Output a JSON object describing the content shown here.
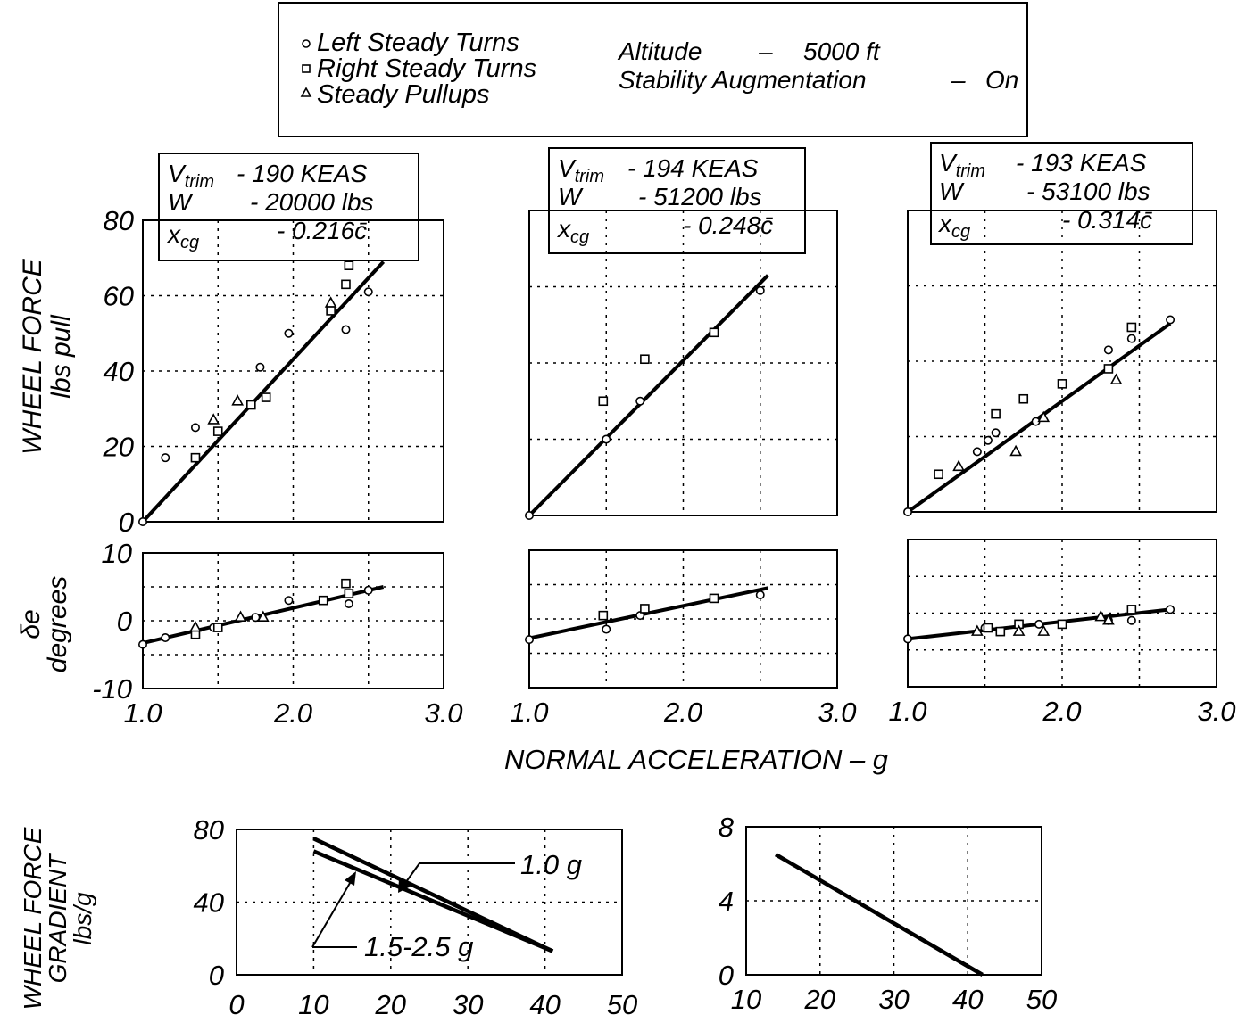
{
  "legend": {
    "items": [
      {
        "marker": "circle",
        "label": "Left Steady Turns"
      },
      {
        "marker": "square",
        "label": "Right Steady Turns"
      },
      {
        "marker": "triangle",
        "label": "Steady Pullups"
      }
    ],
    "conditions": [
      {
        "name": "Altitude",
        "sep": "–",
        "value": "5000 ft"
      },
      {
        "name": "Stability Augmentation",
        "sep": "–",
        "value": "On"
      }
    ]
  },
  "axis_titles": {
    "wheel_force_line1": "WHEEL FORCE",
    "wheel_force_line2": "lbs pull",
    "de_line1": "δe",
    "de_line2": "degrees",
    "x_common": "NORMAL ACCELERATION  – g",
    "gradient_line1": "WHEEL FORCE",
    "gradient_line2": "GRADIENT",
    "gradient_line3": "lbs/g"
  },
  "panels": [
    {
      "vtrim": "190 KEAS",
      "w": "20000 lbs",
      "xcg": "0.216c̄"
    },
    {
      "vtrim": "194 KEAS",
      "w": "51200 lbs",
      "xcg": "0.248c̄"
    },
    {
      "vtrim": "193 KEAS",
      "w": "53100 lbs",
      "xcg": "0.314c̄"
    }
  ],
  "chart_data": [
    {
      "type": "scatter",
      "xlabel": "NORMAL ACCELERATION – g",
      "ylabel": "WHEEL FORCE lbs pull",
      "xlim": [
        1.0,
        3.0
      ],
      "ylim": [
        0,
        80
      ],
      "grid": true,
      "x_ticks": [
        "1.0",
        "2.0",
        "3.0"
      ],
      "y_ticks": [
        "0",
        "20",
        "40",
        "60",
        "80"
      ],
      "series": [
        {
          "name": "Left Steady Turns",
          "marker": "circle",
          "points": [
            [
              1.0,
              0
            ],
            [
              1.15,
              17
            ],
            [
              1.35,
              25
            ],
            [
              1.78,
              41
            ],
            [
              1.97,
              50
            ],
            [
              2.35,
              51
            ],
            [
              2.5,
              61
            ]
          ]
        },
        {
          "name": "Right Steady Turns",
          "marker": "square",
          "points": [
            [
              1.35,
              17
            ],
            [
              1.5,
              24
            ],
            [
              1.72,
              31
            ],
            [
              1.82,
              33
            ],
            [
              2.25,
              56
            ],
            [
              2.35,
              63
            ],
            [
              2.37,
              68
            ]
          ]
        },
        {
          "name": "Steady Pullups",
          "marker": "triangle",
          "points": [
            [
              1.47,
              27
            ],
            [
              1.63,
              32
            ],
            [
              2.25,
              58
            ]
          ]
        }
      ],
      "fit": [
        [
          1.0,
          0
        ],
        [
          2.6,
          69
        ]
      ]
    },
    {
      "type": "scatter",
      "xlabel": "NORMAL ACCELERATION – g",
      "ylabel": "WHEEL FORCE lbs pull",
      "xlim": [
        1.0,
        3.0
      ],
      "ylim": [
        0,
        80
      ],
      "grid": true,
      "series": [
        {
          "name": "Left Steady Turns",
          "marker": "circle",
          "points": [
            [
              1.0,
              0
            ],
            [
              1.5,
              20
            ],
            [
              1.72,
              30
            ],
            [
              2.5,
              59
            ]
          ]
        },
        {
          "name": "Right Steady Turns",
          "marker": "square",
          "points": [
            [
              1.48,
              30
            ],
            [
              1.75,
              41
            ],
            [
              2.2,
              48
            ]
          ]
        }
      ],
      "fit": [
        [
          1.0,
          0
        ],
        [
          2.55,
          63
        ]
      ]
    },
    {
      "type": "scatter",
      "xlabel": "NORMAL ACCELERATION – g",
      "ylabel": "WHEEL FORCE lbs pull",
      "xlim": [
        1.0,
        3.0
      ],
      "ylim": [
        0,
        80
      ],
      "grid": true,
      "series": [
        {
          "name": "Left Steady Turns",
          "marker": "circle",
          "points": [
            [
              1.0,
              0
            ],
            [
              1.45,
              16
            ],
            [
              1.52,
              19
            ],
            [
              1.57,
              21
            ],
            [
              1.83,
              24
            ],
            [
              2.3,
              43
            ],
            [
              2.45,
              46
            ],
            [
              2.7,
              51
            ]
          ]
        },
        {
          "name": "Right Steady Turns",
          "marker": "square",
          "points": [
            [
              1.2,
              10
            ],
            [
              1.57,
              26
            ],
            [
              1.75,
              30
            ],
            [
              2.0,
              34
            ],
            [
              2.3,
              38
            ],
            [
              2.45,
              49
            ]
          ]
        },
        {
          "name": "Steady Pullups",
          "marker": "triangle",
          "points": [
            [
              1.33,
              12
            ],
            [
              1.7,
              16
            ],
            [
              1.88,
              25
            ],
            [
              2.35,
              35
            ]
          ]
        }
      ],
      "fit": [
        [
          1.0,
          0
        ],
        [
          2.7,
          50
        ]
      ]
    },
    {
      "type": "scatter",
      "xlabel": "NORMAL ACCELERATION – g",
      "ylabel": "δe degrees",
      "xlim": [
        1.0,
        3.0
      ],
      "ylim": [
        -10,
        10
      ],
      "grid": true,
      "x_ticks": [
        "1.0",
        "2.0",
        "3.0"
      ],
      "y_ticks": [
        "-10",
        "0",
        "10"
      ],
      "series": [
        {
          "name": "Left Steady Turns",
          "marker": "circle",
          "points": [
            [
              1.0,
              -3.5
            ],
            [
              1.15,
              -2.5
            ],
            [
              1.47,
              -1
            ],
            [
              1.75,
              0.5
            ],
            [
              1.97,
              3
            ],
            [
              2.37,
              2.5
            ],
            [
              2.5,
              4.5
            ]
          ]
        },
        {
          "name": "Right Steady Turns",
          "marker": "square",
          "points": [
            [
              1.35,
              -2
            ],
            [
              1.5,
              -1
            ],
            [
              2.2,
              3
            ],
            [
              2.35,
              5.5
            ],
            [
              2.37,
              4
            ]
          ]
        },
        {
          "name": "Steady Pullups",
          "marker": "triangle",
          "points": [
            [
              1.35,
              -1
            ],
            [
              1.65,
              0.5
            ],
            [
              1.8,
              0.5
            ]
          ]
        }
      ],
      "fit": [
        [
          1.0,
          -3.3
        ],
        [
          2.6,
          5
        ]
      ]
    },
    {
      "type": "scatter",
      "xlabel": "NORMAL ACCELERATION – g",
      "ylabel": "δe degrees",
      "xlim": [
        1.0,
        3.0
      ],
      "ylim": [
        -10,
        10
      ],
      "grid": true,
      "x_ticks": [
        "1.0",
        "2.0",
        "3.0"
      ],
      "series": [
        {
          "name": "Left Steady Turns",
          "marker": "circle",
          "points": [
            [
              1.0,
              -3
            ],
            [
              1.5,
              -1.5
            ],
            [
              1.72,
              0.5
            ],
            [
              2.5,
              3.5
            ]
          ]
        },
        {
          "name": "Right Steady Turns",
          "marker": "square",
          "points": [
            [
              1.48,
              0.5
            ],
            [
              1.75,
              1.5
            ],
            [
              2.2,
              3
            ]
          ]
        }
      ],
      "fit": [
        [
          1.0,
          -2.8
        ],
        [
          2.55,
          4.5
        ]
      ]
    },
    {
      "type": "scatter",
      "xlabel": "NORMAL ACCELERATION – g",
      "ylabel": "δe degrees",
      "xlim": [
        1.0,
        3.0
      ],
      "ylim": [
        -10,
        10
      ],
      "grid": true,
      "x_ticks": [
        "1.0",
        "2.0",
        "3.0"
      ],
      "series": [
        {
          "name": "Left Steady Turns",
          "marker": "circle",
          "points": [
            [
              1.0,
              -3.5
            ],
            [
              1.5,
              -2
            ],
            [
              1.85,
              -1.5
            ],
            [
              2.3,
              -1
            ],
            [
              2.45,
              -1
            ],
            [
              2.7,
              0.5
            ]
          ]
        },
        {
          "name": "Right Steady Turns",
          "marker": "square",
          "points": [
            [
              1.52,
              -2
            ],
            [
              1.6,
              -2.5
            ],
            [
              1.72,
              -1.5
            ],
            [
              2.0,
              -1.5
            ],
            [
              2.45,
              0.5
            ]
          ]
        },
        {
          "name": "Steady Pullups",
          "marker": "triangle",
          "points": [
            [
              1.45,
              -2.5
            ],
            [
              1.72,
              -2.5
            ],
            [
              1.88,
              -2.5
            ],
            [
              2.25,
              -0.5
            ],
            [
              2.3,
              -1
            ]
          ]
        }
      ],
      "fit": [
        [
          1.0,
          -3.5
        ],
        [
          2.7,
          0.5
        ]
      ]
    },
    {
      "type": "line",
      "ylabel": "WHEEL FORCE GRADIENT lbs/g",
      "xlim": [
        0,
        50
      ],
      "ylim": [
        0,
        80
      ],
      "grid": true,
      "x_ticks": [
        "0",
        "10",
        "20",
        "30",
        "40",
        "50"
      ],
      "y_ticks": [
        "0",
        "40",
        "80"
      ],
      "series": [
        {
          "name": "1.0 g",
          "points": [
            [
              10,
              75
            ],
            [
              41,
              13
            ]
          ]
        },
        {
          "name": "1.5-2.5 g",
          "points": [
            [
              10,
              68
            ],
            [
              41,
              13
            ]
          ]
        }
      ]
    },
    {
      "type": "line",
      "xlim": [
        10,
        50
      ],
      "ylim": [
        0,
        8
      ],
      "grid": true,
      "x_ticks": [
        "10",
        "20",
        "30",
        "40",
        "50"
      ],
      "y_ticks": [
        "0",
        "4",
        "8"
      ],
      "series": [
        {
          "points": [
            [
              14,
              6.5
            ],
            [
              42,
              0
            ]
          ]
        }
      ]
    }
  ]
}
